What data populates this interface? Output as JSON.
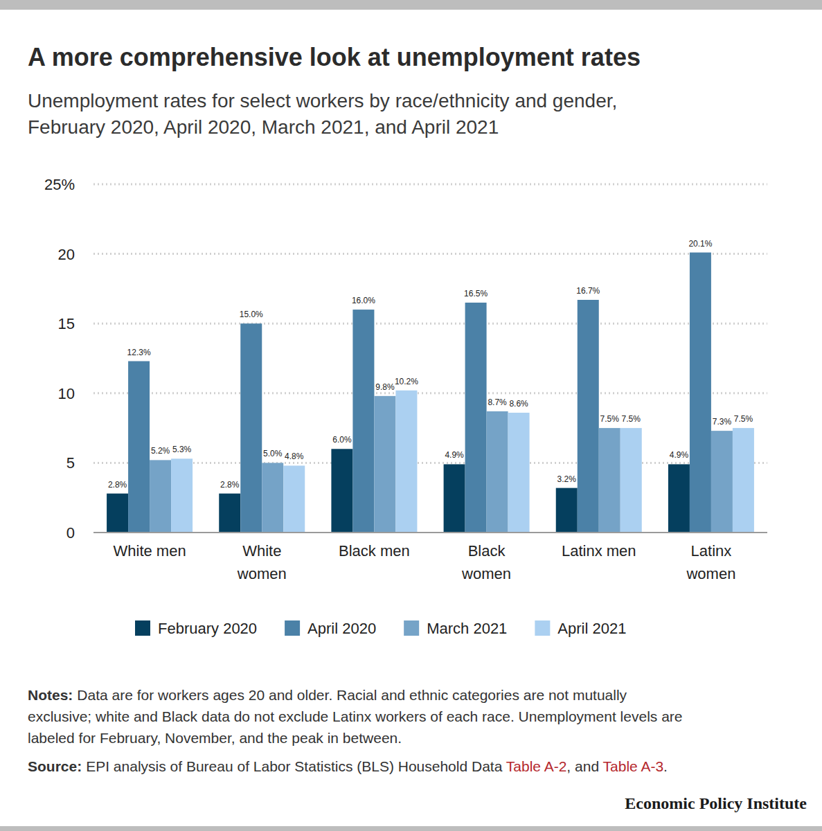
{
  "chart_data": {
    "type": "bar",
    "title": "A more comprehensive look at unemployment rates",
    "subtitle": [
      "Unemployment rates for select workers by race/ethnicity and gender,",
      "February 2020, April 2020, March 2021, and April 2021"
    ],
    "categories": [
      "White men",
      "White women",
      "Black men",
      "Black women",
      "Latinx men",
      "Latinx women"
    ],
    "series": [
      {
        "name": "February 2020",
        "color": "#053f5e",
        "values": [
          2.8,
          2.8,
          6.0,
          4.9,
          3.2,
          4.9
        ],
        "value_labels": [
          "2.8%",
          "2.8%",
          "6.0%",
          "4.9%",
          "3.2%",
          "4.9%"
        ]
      },
      {
        "name": "April 2020",
        "color": "#4b81a7",
        "values": [
          12.3,
          15.0,
          16.0,
          16.5,
          16.7,
          20.1
        ],
        "value_labels": [
          "12.3%",
          "15.0%",
          "16.0%",
          "16.5%",
          "16.7%",
          "20.1%"
        ]
      },
      {
        "name": "March 2021",
        "color": "#75a3c7",
        "values": [
          5.2,
          5.0,
          9.8,
          8.7,
          7.5,
          7.3
        ],
        "value_labels": [
          "5.2%",
          "5.0%",
          "9.8%",
          "8.7%",
          "7.5%",
          "7.3%"
        ]
      },
      {
        "name": "April 2021",
        "color": "#abd0f1",
        "values": [
          5.3,
          4.8,
          10.2,
          8.6,
          7.5,
          7.5
        ],
        "value_labels": [
          "5.3%",
          "4.8%",
          "10.2%",
          "8.6%",
          "7.5%",
          "7.5%"
        ]
      }
    ],
    "ylim": [
      0,
      25
    ],
    "yticks": [
      0,
      5,
      10,
      15,
      20,
      {
        "value": 25,
        "label": "25%"
      }
    ],
    "grid": true,
    "legend": "bottom",
    "data_labels": true,
    "notes": {
      "label": "Notes:",
      "lines": [
        "Data are for workers ages 20 and older. Racial and ethnic categories are not mutually",
        "exclusive; white and Black data do not exclude Latinx workers of each race. Unemployment levels are",
        "labeled for February, November, and the peak in between."
      ]
    },
    "source": {
      "label": "Source:",
      "parts": [
        "EPI analysis of Bureau of Labor Statistics (BLS) Household Data ",
        "Table A-2",
        ", and ",
        "Table A-3",
        "."
      ]
    },
    "publisher": "Economic Policy Institute"
  }
}
